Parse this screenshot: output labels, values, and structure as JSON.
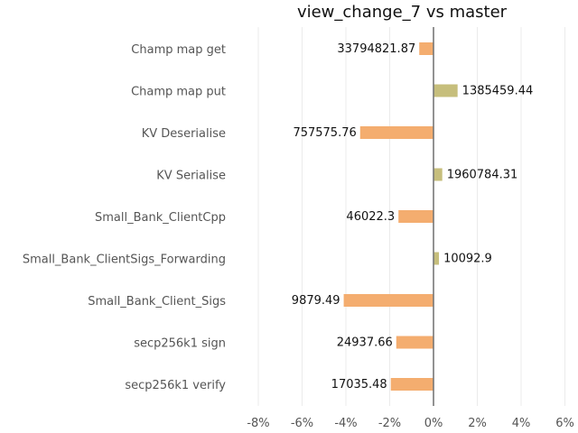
{
  "chart_data": {
    "type": "bar",
    "orientation": "horizontal",
    "title": "view_change_7 vs master",
    "xlabel": "",
    "ylabel": "",
    "xlim": [
      -9,
      6.3
    ],
    "x_ticks": [
      -8,
      -6,
      -4,
      -2,
      0,
      2,
      4,
      6
    ],
    "x_tick_labels": [
      "-8%",
      "-6%",
      "-4%",
      "-2%",
      "0%",
      "2%",
      "4%",
      "6%"
    ],
    "grid": true,
    "legend": "none",
    "colors": {
      "negative": "#f4ad6f",
      "positive": "#c6be7c",
      "zero_line": "#777777",
      "grid": "#ebebeb"
    },
    "categories": [
      "Champ map get",
      "Champ map put",
      "KV Deserialise",
      "KV Serialise",
      "Small_Bank_ClientCpp",
      "Small_Bank_ClientSigs_Forwarding",
      "Small_Bank_Client_Sigs",
      "secp256k1 sign",
      "secp256k1 verify"
    ],
    "values": [
      -0.65,
      1.1,
      -3.35,
      0.4,
      -1.6,
      0.25,
      -4.1,
      -1.7,
      -1.95
    ],
    "data_labels": [
      "33794821.87",
      "1385459.44",
      "757575.76",
      "1960784.31",
      "46022.3",
      "10092.9",
      "9879.49",
      "24937.66",
      "17035.48"
    ]
  }
}
